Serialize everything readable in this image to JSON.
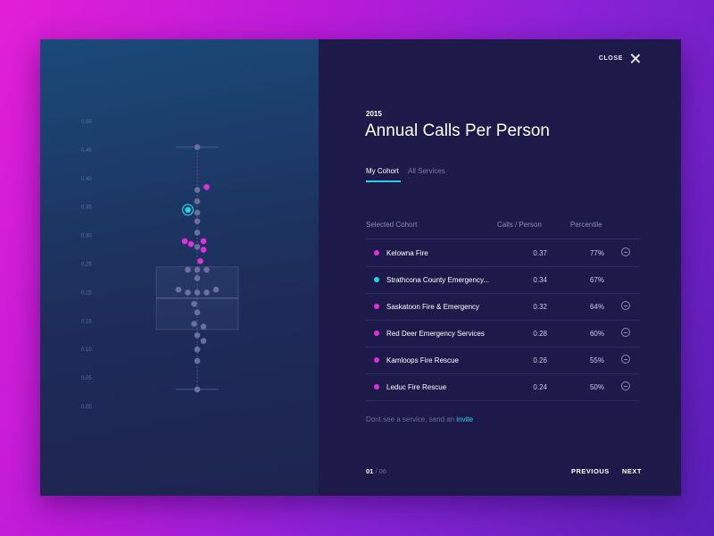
{
  "close_label": "CLOSE",
  "year": "2015",
  "title": "Annual Calls Per Person",
  "tabs": [
    {
      "label": "My Cohort",
      "active": true
    },
    {
      "label": "All Services",
      "active": false
    }
  ],
  "table": {
    "headers": {
      "cohort": "Selected Cohort",
      "calls": "Calls / Person",
      "percentile": "Percentile"
    },
    "rows": [
      {
        "name": "Kelowna Fire",
        "calls": "0.37",
        "percentile": "77%",
        "color": "#e12ee0",
        "removable": true
      },
      {
        "name": "Strathcona County Emergency...",
        "calls": "0.34",
        "percentile": "67%",
        "color": "#22d3e6",
        "removable": false
      },
      {
        "name": "Saskatoon Fire & Emergency",
        "calls": "0.32",
        "percentile": "64%",
        "color": "#e12ee0",
        "removable": true
      },
      {
        "name": "Red Deer Emergency Services",
        "calls": "0.28",
        "percentile": "60%",
        "color": "#e12ee0",
        "removable": true
      },
      {
        "name": "Kamloops Fire Rescue",
        "calls": "0.26",
        "percentile": "55%",
        "color": "#e12ee0",
        "removable": true
      },
      {
        "name": "Leduc Fire Rescue",
        "calls": "0.24",
        "percentile": "50%",
        "color": "#e12ee0",
        "removable": true
      }
    ]
  },
  "footnote": {
    "text": "Dont see a service, send an",
    "link": "invite"
  },
  "pagination": {
    "current": "01",
    "separator": "/",
    "total": "06"
  },
  "nav": {
    "previous": "PREVIOUS",
    "next": "NEXT"
  },
  "colors": {
    "accent": "#22d3e6",
    "highlight": "#e12ee0",
    "neutral_dot": "#6a6f9e"
  },
  "chart_data": {
    "type": "scatter",
    "subtype": "beeswarm-boxplot",
    "y_ticks": [
      "0.00",
      "0.05",
      "0.10",
      "0.15",
      "0.20",
      "0.25",
      "0.30",
      "0.35",
      "0.40",
      "0.45",
      "0.50"
    ],
    "ylim": [
      0,
      0.5
    ],
    "whisker": [
      0.03,
      0.455
    ],
    "box": {
      "q1": 0.135,
      "median": 0.19,
      "q3": 0.245
    },
    "points": [
      {
        "x": 0,
        "y": 0.455,
        "group": "other"
      },
      {
        "x": 1.5,
        "y": 0.385,
        "group": "highlight"
      },
      {
        "x": 0,
        "y": 0.38,
        "group": "other"
      },
      {
        "x": 0,
        "y": 0.36,
        "group": "other"
      },
      {
        "x": -1.5,
        "y": 0.345,
        "group": "selected"
      },
      {
        "x": 0,
        "y": 0.34,
        "group": "other"
      },
      {
        "x": 0,
        "y": 0.325,
        "group": "other"
      },
      {
        "x": 0,
        "y": 0.305,
        "group": "other"
      },
      {
        "x": -2,
        "y": 0.29,
        "group": "highlight"
      },
      {
        "x": 1,
        "y": 0.29,
        "group": "highlight"
      },
      {
        "x": -1,
        "y": 0.285,
        "group": "highlight"
      },
      {
        "x": 0,
        "y": 0.28,
        "group": "other"
      },
      {
        "x": 1,
        "y": 0.275,
        "group": "highlight"
      },
      {
        "x": 0.5,
        "y": 0.255,
        "group": "highlight"
      },
      {
        "x": -1.5,
        "y": 0.24,
        "group": "other"
      },
      {
        "x": 0,
        "y": 0.24,
        "group": "other"
      },
      {
        "x": 1.5,
        "y": 0.24,
        "group": "other"
      },
      {
        "x": 0,
        "y": 0.225,
        "group": "other"
      },
      {
        "x": -3,
        "y": 0.205,
        "group": "other"
      },
      {
        "x": -1.5,
        "y": 0.2,
        "group": "other"
      },
      {
        "x": 0,
        "y": 0.2,
        "group": "other"
      },
      {
        "x": 1.5,
        "y": 0.2,
        "group": "other"
      },
      {
        "x": 3,
        "y": 0.205,
        "group": "other"
      },
      {
        "x": -0.5,
        "y": 0.18,
        "group": "other"
      },
      {
        "x": 0,
        "y": 0.165,
        "group": "other"
      },
      {
        "x": -0.5,
        "y": 0.145,
        "group": "other"
      },
      {
        "x": 1,
        "y": 0.14,
        "group": "other"
      },
      {
        "x": 0,
        "y": 0.125,
        "group": "other"
      },
      {
        "x": 1,
        "y": 0.115,
        "group": "other"
      },
      {
        "x": 0,
        "y": 0.1,
        "group": "other"
      },
      {
        "x": 0,
        "y": 0.08,
        "group": "other"
      },
      {
        "x": 0,
        "y": 0.03,
        "group": "other"
      }
    ]
  }
}
